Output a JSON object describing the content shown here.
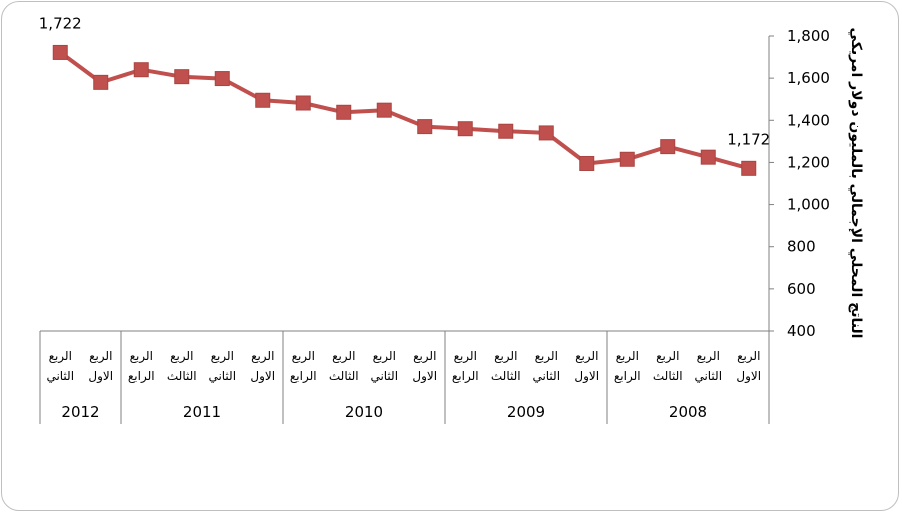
{
  "chart_data": {
    "type": "line",
    "ylabel": "الناتج المحلي الإجمالي بالمليون دولار امريكي",
    "ylim": [
      400,
      1800
    ],
    "yticks": [
      400,
      600,
      800,
      1000,
      1200,
      1400,
      1600,
      1800
    ],
    "ytick_labels": [
      "400",
      "600",
      "800",
      "1,000",
      "1,200",
      "1,400",
      "1,600",
      "1,800"
    ],
    "x_direction": "right-to-left",
    "years": [
      "2008",
      "2009",
      "2010",
      "2011",
      "2012"
    ],
    "x": [
      {
        "year": "2008",
        "quarter": [
          "الربع",
          "الاول"
        ]
      },
      {
        "year": "2008",
        "quarter": [
          "الربع",
          "الثاني"
        ]
      },
      {
        "year": "2008",
        "quarter": [
          "الربع",
          "الثالث"
        ]
      },
      {
        "year": "2008",
        "quarter": [
          "الربع",
          "الرابع"
        ]
      },
      {
        "year": "2009",
        "quarter": [
          "الربع",
          "الاول"
        ]
      },
      {
        "year": "2009",
        "quarter": [
          "الربع",
          "الثاني"
        ]
      },
      {
        "year": "2009",
        "quarter": [
          "الربع",
          "الثالث"
        ]
      },
      {
        "year": "2009",
        "quarter": [
          "الربع",
          "الرابع"
        ]
      },
      {
        "year": "2010",
        "quarter": [
          "الربع",
          "الاول"
        ]
      },
      {
        "year": "2010",
        "quarter": [
          "الربع",
          "الثاني"
        ]
      },
      {
        "year": "2010",
        "quarter": [
          "الربع",
          "الثالث"
        ]
      },
      {
        "year": "2010",
        "quarter": [
          "الربع",
          "الرابع"
        ]
      },
      {
        "year": "2011",
        "quarter": [
          "الربع",
          "الاول"
        ]
      },
      {
        "year": "2011",
        "quarter": [
          "الربع",
          "الثاني"
        ]
      },
      {
        "year": "2011",
        "quarter": [
          "الربع",
          "الثالث"
        ]
      },
      {
        "year": "2011",
        "quarter": [
          "الربع",
          "الرابع"
        ]
      },
      {
        "year": "2012",
        "quarter": [
          "الربع",
          "الاول"
        ]
      },
      {
        "year": "2012",
        "quarter": [
          "الربع",
          "الثاني"
        ]
      }
    ],
    "series": [
      {
        "values": [
          1172,
          1225,
          1275,
          1215,
          1195,
          1340,
          1348,
          1360,
          1370,
          1448,
          1438,
          1482,
          1495,
          1598,
          1607,
          1640,
          1580,
          1722
        ],
        "color": "#c0504d"
      }
    ],
    "data_labels": [
      {
        "index": 0,
        "text": "1,172"
      },
      {
        "index": 17,
        "text": "1,722"
      }
    ],
    "grid": false,
    "legend": "none"
  }
}
